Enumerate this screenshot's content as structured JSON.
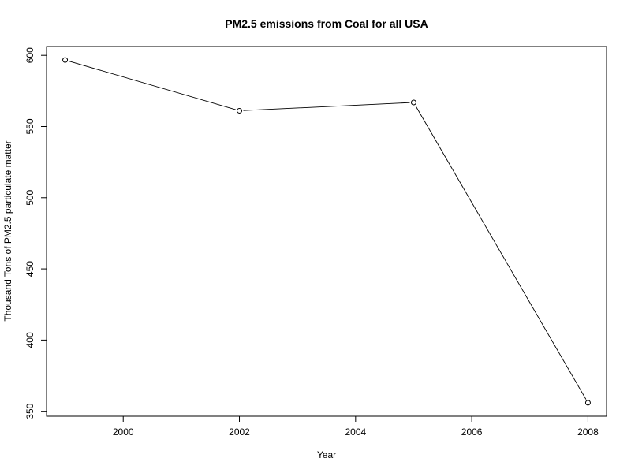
{
  "chart_data": {
    "type": "line",
    "title": "PM2.5 emissions from Coal for all USA",
    "xlabel": "Year",
    "ylabel": "Thousand Tons of PM2.5 particulate matter",
    "x": [
      1999,
      2002,
      2005,
      2008
    ],
    "series": [
      {
        "values": [
          596.7,
          561.1,
          566.9,
          356.0
        ]
      }
    ],
    "xlim": [
      1998.68,
      2008.32
    ],
    "ylim": [
      346.5,
      606.2
    ],
    "xticks": [
      2000,
      2002,
      2004,
      2006,
      2008
    ],
    "yticks": [
      350,
      400,
      450,
      500,
      550,
      600
    ],
    "marker": "open-circle",
    "grid": false,
    "legend": "none"
  }
}
